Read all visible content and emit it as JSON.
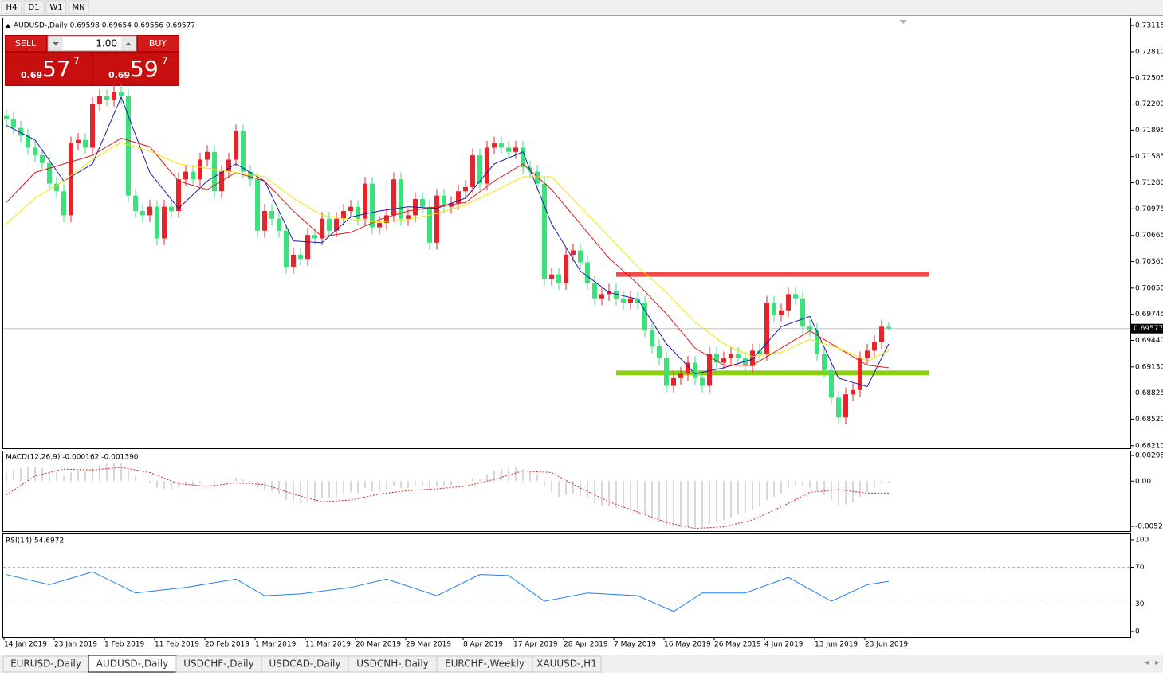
{
  "toolbar": [
    "H4",
    "D1",
    "W1",
    "MN"
  ],
  "trade_panel": {
    "sell": "SELL",
    "lots": "1.00",
    "buy": "BUY",
    "sell_price": {
      "big": "0.69",
      "pips": "57",
      "point": "7"
    },
    "buy_price": {
      "big": "0.69",
      "pips": "59",
      "point": "7"
    }
  },
  "tabs": [
    "EURUSD-,Daily",
    "AUDUSD-,Daily",
    "USDCHF-,Daily",
    "USDCAD-,Daily",
    "USDCNH-,Daily",
    "EURCHF-,Weekly",
    "XAUUSD-,H1"
  ],
  "active_tab": 1,
  "chart_data": [
    {
      "type": "candlestick",
      "title": "AUDUSD-,Daily  0.69598 0.69654 0.69556 0.69577",
      "up_color": "#e8242a",
      "down_color": "#3be27c",
      "open": [
        0.7206,
        0.7202,
        0.7192,
        0.7183,
        0.7169,
        0.716,
        0.7151,
        0.7127,
        0.7118,
        0.709,
        0.7174,
        0.7178,
        0.7169,
        0.722,
        0.7229,
        0.7225,
        0.7234,
        0.7229,
        0.7113,
        0.7095,
        0.709,
        0.71,
        0.7063,
        0.71,
        0.7095,
        0.7132,
        0.7141,
        0.7132,
        0.7155,
        0.7164,
        0.7118,
        0.7141,
        0.7155,
        0.7188,
        0.7141,
        0.7132,
        0.7072,
        0.7095,
        0.7086,
        0.7072,
        0.703,
        0.7044,
        0.7039,
        0.7067,
        0.7063,
        0.7086,
        0.7072,
        0.7086,
        0.7095,
        0.71,
        0.7086,
        0.7127,
        0.7076,
        0.7081,
        0.709,
        0.7132,
        0.7086,
        0.709,
        0.7109,
        0.71,
        0.7058,
        0.7113,
        0.71,
        0.7104,
        0.7118,
        0.7123,
        0.716,
        0.7127,
        0.7169,
        0.7174,
        0.7169,
        0.7164,
        0.7169,
        0.7146,
        0.7141,
        0.7127,
        0.7016,
        0.7021,
        0.7011,
        0.7044,
        0.7049,
        0.7035,
        0.7011,
        0.6993,
        0.6998,
        0.7002,
        0.6993,
        0.6988,
        0.6993,
        0.6988,
        0.6956,
        0.6937,
        0.6923,
        0.6891,
        0.69,
        0.6905,
        0.6918,
        0.69,
        0.6891,
        0.6928,
        0.6918,
        0.6923,
        0.6928,
        0.6923,
        0.6914,
        0.6932,
        0.6928,
        0.6988,
        0.6974,
        0.6979,
        0.6998,
        0.6993,
        0.696,
        0.6956,
        0.6928,
        0.6909,
        0.6877,
        0.6854,
        0.6881,
        0.6886,
        0.6923,
        0.6932,
        0.6942,
        0.69598
      ],
      "high": [
        0.7214,
        0.721,
        0.72,
        0.7191,
        0.7177,
        0.7168,
        0.7159,
        0.7135,
        0.7126,
        0.7182,
        0.7186,
        0.7186,
        0.7228,
        0.7237,
        0.7237,
        0.7242,
        0.7242,
        0.7237,
        0.7121,
        0.7103,
        0.7108,
        0.7108,
        0.7108,
        0.7108,
        0.714,
        0.7149,
        0.7149,
        0.7163,
        0.7172,
        0.7172,
        0.7149,
        0.7163,
        0.7196,
        0.7196,
        0.7149,
        0.714,
        0.7103,
        0.7103,
        0.7094,
        0.708,
        0.7052,
        0.7052,
        0.7075,
        0.7075,
        0.7094,
        0.7094,
        0.7094,
        0.7103,
        0.7108,
        0.7108,
        0.7135,
        0.7135,
        0.7089,
        0.7098,
        0.714,
        0.714,
        0.7098,
        0.7117,
        0.7117,
        0.7108,
        0.7121,
        0.7121,
        0.7112,
        0.7126,
        0.7131,
        0.7168,
        0.7168,
        0.7177,
        0.7182,
        0.7182,
        0.7177,
        0.7177,
        0.7177,
        0.7154,
        0.7149,
        0.7135,
        0.7029,
        0.7029,
        0.7052,
        0.7057,
        0.7057,
        0.7043,
        0.7019,
        0.7006,
        0.701,
        0.701,
        0.7001,
        0.7001,
        0.7001,
        0.6996,
        0.6964,
        0.6945,
        0.6931,
        0.6908,
        0.6913,
        0.6926,
        0.6926,
        0.6908,
        0.6936,
        0.6936,
        0.6931,
        0.6936,
        0.6936,
        0.6931,
        0.694,
        0.694,
        0.6996,
        0.6996,
        0.6987,
        0.7006,
        0.7006,
        0.7001,
        0.6968,
        0.6964,
        0.6936,
        0.6917,
        0.6885,
        0.6889,
        0.6894,
        0.6931,
        0.694,
        0.695,
        0.6968,
        0.69654
      ],
      "low": [
        0.7194,
        0.7184,
        0.7175,
        0.7161,
        0.7152,
        0.7143,
        0.7119,
        0.711,
        0.7082,
        0.7082,
        0.7166,
        0.7161,
        0.7161,
        0.7212,
        0.7217,
        0.7217,
        0.7221,
        0.7105,
        0.7087,
        0.7082,
        0.7082,
        0.7055,
        0.7055,
        0.7087,
        0.7087,
        0.7124,
        0.7124,
        0.7124,
        0.7147,
        0.711,
        0.711,
        0.7133,
        0.7147,
        0.7133,
        0.7124,
        0.7064,
        0.7064,
        0.7078,
        0.7064,
        0.7022,
        0.7022,
        0.7031,
        0.7031,
        0.7055,
        0.7055,
        0.7064,
        0.7064,
        0.7078,
        0.7087,
        0.7078,
        0.7078,
        0.7068,
        0.7068,
        0.7073,
        0.7082,
        0.7078,
        0.7078,
        0.7082,
        0.7092,
        0.705,
        0.705,
        0.7092,
        0.7092,
        0.7096,
        0.711,
        0.7115,
        0.7119,
        0.7119,
        0.7161,
        0.7161,
        0.7156,
        0.7156,
        0.7138,
        0.7133,
        0.7119,
        0.7008,
        0.7008,
        0.7003,
        0.7003,
        0.7036,
        0.7027,
        0.7003,
        0.6985,
        0.6985,
        0.699,
        0.6985,
        0.698,
        0.698,
        0.698,
        0.6948,
        0.6929,
        0.6915,
        0.6883,
        0.6883,
        0.6892,
        0.6897,
        0.6892,
        0.6883,
        0.6883,
        0.691,
        0.691,
        0.6915,
        0.6915,
        0.6906,
        0.6906,
        0.692,
        0.692,
        0.6966,
        0.6966,
        0.6971,
        0.6985,
        0.6952,
        0.6948,
        0.692,
        0.6901,
        0.6869,
        0.6846,
        0.6846,
        0.6873,
        0.6878,
        0.6915,
        0.6924,
        0.6934,
        0.69556
      ],
      "close": [
        0.7202,
        0.7192,
        0.7183,
        0.7169,
        0.716,
        0.7151,
        0.7127,
        0.7118,
        0.709,
        0.7174,
        0.7178,
        0.7169,
        0.722,
        0.7229,
        0.7225,
        0.7234,
        0.7229,
        0.7113,
        0.7095,
        0.709,
        0.71,
        0.7063,
        0.71,
        0.7095,
        0.7132,
        0.7141,
        0.7132,
        0.7155,
        0.7164,
        0.7118,
        0.7141,
        0.7155,
        0.7188,
        0.7141,
        0.7132,
        0.7072,
        0.7095,
        0.7086,
        0.7072,
        0.703,
        0.7044,
        0.7039,
        0.7067,
        0.7063,
        0.7086,
        0.7072,
        0.7086,
        0.7095,
        0.71,
        0.7086,
        0.7127,
        0.7076,
        0.7081,
        0.709,
        0.7132,
        0.7086,
        0.709,
        0.7109,
        0.71,
        0.7058,
        0.7113,
        0.71,
        0.7104,
        0.7118,
        0.7123,
        0.716,
        0.7127,
        0.7169,
        0.7174,
        0.7169,
        0.7164,
        0.7169,
        0.7146,
        0.7141,
        0.7127,
        0.7016,
        0.7021,
        0.7011,
        0.7044,
        0.7049,
        0.7035,
        0.7011,
        0.6993,
        0.6998,
        0.7002,
        0.6993,
        0.6988,
        0.6993,
        0.6988,
        0.6956,
        0.6937,
        0.6923,
        0.6891,
        0.69,
        0.6905,
        0.6918,
        0.69,
        0.6891,
        0.6928,
        0.6918,
        0.6923,
        0.6928,
        0.6923,
        0.6914,
        0.6932,
        0.6928,
        0.6988,
        0.6974,
        0.6979,
        0.6998,
        0.6993,
        0.696,
        0.6956,
        0.6928,
        0.6909,
        0.6877,
        0.6854,
        0.6881,
        0.6886,
        0.6923,
        0.6932,
        0.6942,
        0.696,
        0.69577
      ],
      "line_x": [
        0,
        4,
        8,
        12,
        16,
        20,
        24,
        28,
        32,
        36,
        40,
        44,
        48,
        52,
        56,
        60,
        64,
        68,
        72,
        76,
        80,
        84,
        88,
        92,
        96,
        100,
        104,
        108,
        112,
        116,
        120,
        123
      ],
      "lines": [
        {
          "color": "#1a1aa8",
          "values": [
            0.7195,
            0.7178,
            0.713,
            0.715,
            0.7228,
            0.714,
            0.7098,
            0.713,
            0.715,
            0.713,
            0.706,
            0.7058,
            0.7088,
            0.7095,
            0.71,
            0.7098,
            0.711,
            0.715,
            0.7164,
            0.708,
            0.7025,
            0.7,
            0.6992,
            0.694,
            0.6905,
            0.6912,
            0.6922,
            0.696,
            0.6972,
            0.69,
            0.689,
            0.694
          ]
        },
        {
          "color": "#d81c1c",
          "values": [
            0.7105,
            0.714,
            0.715,
            0.716,
            0.718,
            0.717,
            0.713,
            0.712,
            0.714,
            0.713,
            0.7095,
            0.7065,
            0.707,
            0.7085,
            0.7095,
            0.71,
            0.7105,
            0.713,
            0.715,
            0.712,
            0.708,
            0.704,
            0.701,
            0.6975,
            0.6935,
            0.6915,
            0.6915,
            0.6935,
            0.6955,
            0.6935,
            0.6915,
            0.6912
          ]
        },
        {
          "color": "#f2e600",
          "values": [
            0.708,
            0.711,
            0.713,
            0.7155,
            0.7175,
            0.7165,
            0.715,
            0.7145,
            0.714,
            0.7135,
            0.711,
            0.709,
            0.7085,
            0.7082,
            0.7085,
            0.7092,
            0.7102,
            0.7118,
            0.7135,
            0.7135,
            0.71,
            0.7065,
            0.703,
            0.7,
            0.6965,
            0.694,
            0.6925,
            0.693,
            0.6945,
            0.6935,
            0.692,
            0.6932
          ]
        }
      ],
      "levels": [
        {
          "value": 0.7021,
          "color": "#f04a4a"
        },
        {
          "value": 0.6906,
          "color": "#8ccf14"
        }
      ],
      "level_start": 85,
      "current_price": 0.69577,
      "ylim": [
        0.6818,
        0.732
      ],
      "yticks": [
        0.73115,
        {
          "value": 0.7281,
          "label": "0.72810"
        },
        0.72505,
        {
          "value": 0.722,
          "label": "0.72200"
        },
        0.71895,
        0.71585,
        {
          "value": 0.7128,
          "label": "0.71280"
        },
        0.70975,
        0.70665,
        {
          "value": 0.7036,
          "label": "0.70360"
        },
        {
          "value": 0.7005,
          "label": "0.70050"
        },
        0.69745,
        {
          "value": 0.6944,
          "label": "0.69440"
        },
        {
          "value": 0.6913,
          "label": "0.69130"
        },
        0.68825,
        {
          "value": 0.6852,
          "label": "0.68520"
        },
        {
          "value": 0.6821,
          "label": "0.68210"
        }
      ],
      "xticks": [
        {
          "value": 0,
          "label": "14 Jan 2019"
        },
        {
          "value": 7,
          "label": "23 Jan 2019"
        },
        {
          "value": 14,
          "label": "1 Feb 2019"
        },
        {
          "value": 21,
          "label": "11 Feb 2019"
        },
        {
          "value": 28,
          "label": "20 Feb 2019"
        },
        {
          "value": 35,
          "label": "1 Mar 2019"
        },
        {
          "value": 42,
          "label": "11 Mar 2019"
        },
        {
          "value": 49,
          "label": "20 Mar 2019"
        },
        {
          "value": 56,
          "label": "29 Mar 2019"
        },
        {
          "value": 64,
          "label": "8 Apr 2019"
        },
        {
          "value": 71,
          "label": "17 Apr 2019"
        },
        {
          "value": 78,
          "label": "28 Apr 2019"
        },
        {
          "value": 85,
          "label": "7 May 2019"
        },
        {
          "value": 92,
          "label": "16 May 2019"
        },
        {
          "value": 99,
          "label": "26 May 2019"
        },
        {
          "value": 106,
          "label": "4 Jun 2019"
        },
        {
          "value": 113,
          "label": "13 Jun 2019"
        },
        {
          "value": 120,
          "label": "23 Jun 2019"
        }
      ]
    },
    {
      "type": "macd",
      "title": "MACD(12,26,9) -0.000162 -0.001390",
      "hist_color": "#b0b0b0",
      "signal_color": "#d42020",
      "histogram": [
        0.001,
        0.0013,
        0.0015,
        0.0016,
        0.0016,
        0.0015,
        0.0013,
        0.001,
        0.0006,
        0.001,
        0.0012,
        0.0012,
        0.0016,
        0.0019,
        0.002,
        0.0021,
        0.0021,
        0.0012,
        0.0005,
        0.0,
        -0.0002,
        -0.0008,
        -0.0009,
        -0.001,
        -0.0008,
        -0.0005,
        -0.0005,
        -0.0002,
        0.0,
        -0.0003,
        -0.0002,
        0.0,
        0.0004,
        0.0002,
        -0.0001,
        -0.0008,
        -0.001,
        -0.0012,
        -0.0015,
        -0.0022,
        -0.0024,
        -0.0026,
        -0.0024,
        -0.0024,
        -0.002,
        -0.002,
        -0.0018,
        -0.0015,
        -0.0013,
        -0.0014,
        -0.0008,
        -0.0012,
        -0.0012,
        -0.001,
        -0.0005,
        -0.0008,
        -0.0008,
        -0.0006,
        -0.0006,
        -0.001,
        -0.0006,
        -0.0006,
        -0.0005,
        -0.0003,
        -0.0001,
        0.0004,
        0.0003,
        0.0008,
        0.0012,
        0.0014,
        0.0015,
        0.0016,
        0.0014,
        0.0012,
        0.0008,
        -0.0006,
        -0.0012,
        -0.0018,
        -0.0016,
        -0.0015,
        -0.0017,
        -0.0021,
        -0.0026,
        -0.0028,
        -0.0029,
        -0.0031,
        -0.0033,
        -0.0034,
        -0.0035,
        -0.0039,
        -0.0043,
        -0.0047,
        -0.0052,
        -0.0053,
        -0.0054,
        -0.0053,
        -0.0054,
        -0.0055,
        -0.005,
        -0.0048,
        -0.0045,
        -0.0042,
        -0.0039,
        -0.0037,
        -0.0033,
        -0.003,
        -0.0022,
        -0.0018,
        -0.0014,
        -0.0008,
        -0.0005,
        -0.0006,
        -0.0008,
        -0.0012,
        -0.0016,
        -0.0022,
        -0.0028,
        -0.0027,
        -0.0025,
        -0.0018,
        -0.0013,
        -0.0008,
        -0.0003,
        -0.000162
      ],
      "x": [
        0,
        4,
        8,
        12,
        16,
        20,
        24,
        28,
        32,
        36,
        40,
        44,
        48,
        52,
        56,
        60,
        64,
        68,
        72,
        76,
        80,
        84,
        88,
        92,
        96,
        100,
        104,
        108,
        112,
        116,
        120,
        123
      ],
      "signal": [
        -0.0016,
        0.0006,
        0.0014,
        0.0013,
        0.0016,
        0.001,
        -0.0003,
        -0.0006,
        -0.0002,
        -0.0004,
        -0.0015,
        -0.0024,
        -0.0022,
        -0.0015,
        -0.0011,
        -0.0009,
        -0.0006,
        0.0002,
        0.0012,
        0.001,
        -0.0008,
        -0.0024,
        -0.0036,
        -0.0048,
        -0.0055,
        -0.0053,
        -0.0045,
        -0.003,
        -0.0013,
        -0.001,
        -0.0014,
        -0.00139
      ],
      "ylim": [
        -0.0058,
        0.00345
      ],
      "yticks": [
        0.002984,
        {
          "value": 0,
          "label": "0.00"
        },
        {
          "value": -0.00525,
          "label": "-0.005250"
        }
      ]
    },
    {
      "type": "line",
      "title": "RSI(14) 54.6972",
      "color": "#1f80e8",
      "x": [
        0,
        6,
        12,
        18,
        25,
        32,
        36,
        41,
        48,
        53,
        60,
        66,
        70,
        75,
        81,
        88,
        93,
        97,
        103,
        109,
        115,
        120,
        123
      ],
      "values": [
        62,
        51,
        65,
        42,
        48,
        57,
        39,
        41,
        48,
        57,
        39,
        62,
        61,
        33,
        42,
        39,
        22,
        42,
        42,
        59,
        33,
        51,
        54.6972
      ],
      "level_lines": [
        70,
        30
      ],
      "ylim": [
        -6,
        106
      ],
      "yticks": [
        100,
        70,
        30,
        0
      ]
    }
  ]
}
